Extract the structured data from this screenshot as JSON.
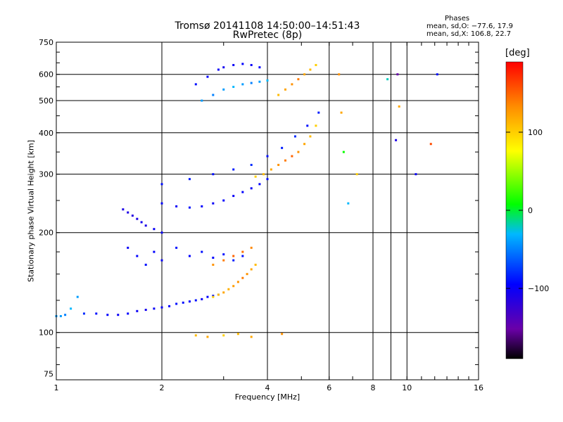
{
  "title": "Tromsø 20141108 14:50:00–14:51:43",
  "subtitle": "RwPretec (8p)",
  "phases": {
    "heading": "Phases",
    "o_stats": "mean, sd,O: −77.6, 17.9",
    "x_stats": "mean, sd,X: 106.8, 22.7"
  },
  "colorbar": {
    "unit": "[deg]",
    "ticks": [
      {
        "value": 100,
        "label": "100"
      },
      {
        "value": 0,
        "label": "0"
      },
      {
        "value": -100,
        "label": "−100"
      }
    ],
    "range": [
      -190,
      190
    ]
  },
  "chart_data": {
    "type": "scatter",
    "xlabel": "Frequency [MHz]",
    "ylabel": "Stationary phase Virtual Height [km]",
    "xscale": "log",
    "yscale": "log",
    "xlim": [
      1,
      16
    ],
    "ylim": [
      72,
      750
    ],
    "grid": true,
    "x_ticks": [
      {
        "v": 1,
        "l": "1"
      },
      {
        "v": 2,
        "l": "2"
      },
      {
        "v": 4,
        "l": "4"
      },
      {
        "v": 6,
        "l": "6"
      },
      {
        "v": 8,
        "l": "8"
      },
      {
        "v": 10,
        "l": "10"
      },
      {
        "v": 16,
        "l": "16"
      }
    ],
    "x_grid": [
      2,
      4,
      6,
      8,
      9,
      10
    ],
    "y_ticks": [
      {
        "v": 75,
        "l": "75"
      },
      {
        "v": 100,
        "l": "100"
      },
      {
        "v": 200,
        "l": "200"
      },
      {
        "v": 300,
        "l": "300"
      },
      {
        "v": 400,
        "l": "400"
      },
      {
        "v": 500,
        "l": "500"
      },
      {
        "v": 600,
        "l": "600"
      },
      {
        "v": 750,
        "l": "750"
      }
    ],
    "y_grid": [
      100,
      200,
      300,
      400,
      500,
      600
    ],
    "series": [
      {
        "x": [
          1.0,
          1.03,
          1.06,
          1.1,
          1.15
        ],
        "y": [
          112,
          112,
          113,
          118,
          128
        ],
        "phase": [
          -40,
          -40,
          -50,
          -30,
          -40
        ]
      },
      {
        "x": [
          1.2,
          1.3,
          1.4,
          1.5,
          1.6,
          1.7,
          1.8,
          1.9,
          2.0,
          2.1,
          2.2,
          2.3,
          2.4,
          2.5,
          2.6,
          2.7,
          2.8,
          2.9
        ],
        "y": [
          114,
          114,
          113,
          113,
          114,
          116,
          117,
          118,
          119,
          120,
          122,
          123,
          124,
          125,
          126,
          128,
          129,
          130
        ],
        "phase": [
          -80,
          -90,
          -95,
          -100,
          -95,
          -100,
          -105,
          -100,
          -100,
          -95,
          -90,
          -90,
          -95,
          -90,
          -100,
          -95,
          -90,
          -80
        ]
      },
      {
        "x": [
          1.55,
          1.6,
          1.65,
          1.7,
          1.75,
          1.8,
          1.9,
          2.0
        ],
        "y": [
          235,
          230,
          225,
          220,
          215,
          210,
          205,
          200
        ],
        "phase": [
          -110,
          -110,
          -115,
          -110,
          -105,
          -110,
          -100,
          -100
        ]
      },
      {
        "x": [
          1.6,
          1.7,
          1.8,
          1.9,
          2.0,
          2.2,
          2.4,
          2.6,
          2.8,
          3.0,
          3.2,
          3.4
        ],
        "y": [
          180,
          170,
          160,
          175,
          165,
          180,
          170,
          175,
          168,
          172,
          165,
          170
        ],
        "phase": [
          -100,
          -95,
          -90,
          -95,
          -100,
          -90,
          -95,
          -90,
          -95,
          -90,
          -85,
          -90
        ]
      },
      {
        "x": [
          2.0,
          2.2,
          2.4,
          2.6,
          2.8,
          3.0,
          3.2,
          3.4,
          3.6,
          3.8,
          4.0
        ],
        "y": [
          245,
          240,
          238,
          240,
          245,
          250,
          258,
          265,
          272,
          280,
          290
        ],
        "phase": [
          -95,
          -100,
          -90,
          -95,
          -100,
          -95,
          -100,
          -95,
          -100,
          -95,
          -90
        ]
      },
      {
        "x": [
          2.0,
          2.4,
          2.8,
          3.2,
          3.6,
          4.0,
          4.4,
          4.8,
          5.2,
          5.6
        ],
        "y": [
          280,
          290,
          300,
          310,
          320,
          340,
          360,
          390,
          420,
          460
        ],
        "phase": [
          -90,
          -85,
          -90,
          -85,
          -80,
          -90,
          -85,
          -80,
          -90,
          -85
        ]
      },
      {
        "x": [
          2.5,
          2.7,
          2.9,
          3.0,
          3.2,
          3.4,
          3.6,
          3.8
        ],
        "y": [
          560,
          590,
          620,
          630,
          640,
          645,
          640,
          630
        ],
        "phase": [
          -90,
          -95,
          -100,
          -105,
          -100,
          -95,
          -100,
          -95
        ]
      },
      {
        "x": [
          2.6,
          2.8,
          3.0,
          3.2,
          3.4,
          3.6,
          3.8,
          4.0
        ],
        "y": [
          500,
          520,
          540,
          550,
          560,
          565,
          570,
          575
        ],
        "phase": [
          -40,
          -50,
          -40,
          -30,
          -40,
          -50,
          -40,
          -30
        ]
      },
      {
        "x": [
          3.7,
          3.9,
          4.1,
          4.3,
          4.5,
          4.7,
          4.9,
          5.1,
          5.3,
          5.5
        ],
        "y": [
          295,
          300,
          310,
          320,
          330,
          340,
          350,
          370,
          390,
          420
        ],
        "phase": [
          100,
          110,
          120,
          130,
          140,
          150,
          130,
          120,
          110,
          100
        ]
      },
      {
        "x": [
          4.3,
          4.5,
          4.7,
          4.9,
          5.1,
          5.3,
          5.5
        ],
        "y": [
          520,
          540,
          560,
          580,
          600,
          620,
          640
        ],
        "phase": [
          110,
          120,
          130,
          140,
          120,
          110,
          100
        ]
      },
      {
        "x": [
          2.8,
          2.9,
          3.0,
          3.1,
          3.2,
          3.3,
          3.4,
          3.5,
          3.6,
          3.7
        ],
        "y": [
          128,
          130,
          132,
          135,
          138,
          142,
          146,
          150,
          155,
          160
        ],
        "phase": [
          100,
          110,
          120,
          115,
          125,
          130,
          140,
          130,
          120,
          110
        ]
      },
      {
        "x": [
          2.8,
          3.0,
          3.2,
          3.4,
          3.6
        ],
        "y": [
          160,
          165,
          170,
          175,
          180
        ],
        "phase": [
          130,
          140,
          150,
          145,
          135
        ]
      },
      {
        "x": [
          2.5,
          2.7,
          3.0,
          3.3,
          3.6,
          4.4
        ],
        "y": [
          98,
          97,
          98,
          99,
          97,
          99
        ],
        "phase": [
          110,
          120,
          100,
          110,
          120,
          130
        ]
      },
      {
        "x": [
          6.4,
          6.5,
          6.6,
          6.8,
          7.2,
          8.8,
          9.3,
          9.4,
          9.5,
          10.6,
          11.7,
          12.2
        ],
        "y": [
          600,
          460,
          350,
          245,
          300,
          580,
          380,
          600,
          480,
          300,
          370,
          600
        ],
        "phase": [
          130,
          120,
          10,
          -30,
          100,
          -20,
          -110,
          -150,
          120,
          -100,
          160,
          -90
        ]
      }
    ]
  }
}
